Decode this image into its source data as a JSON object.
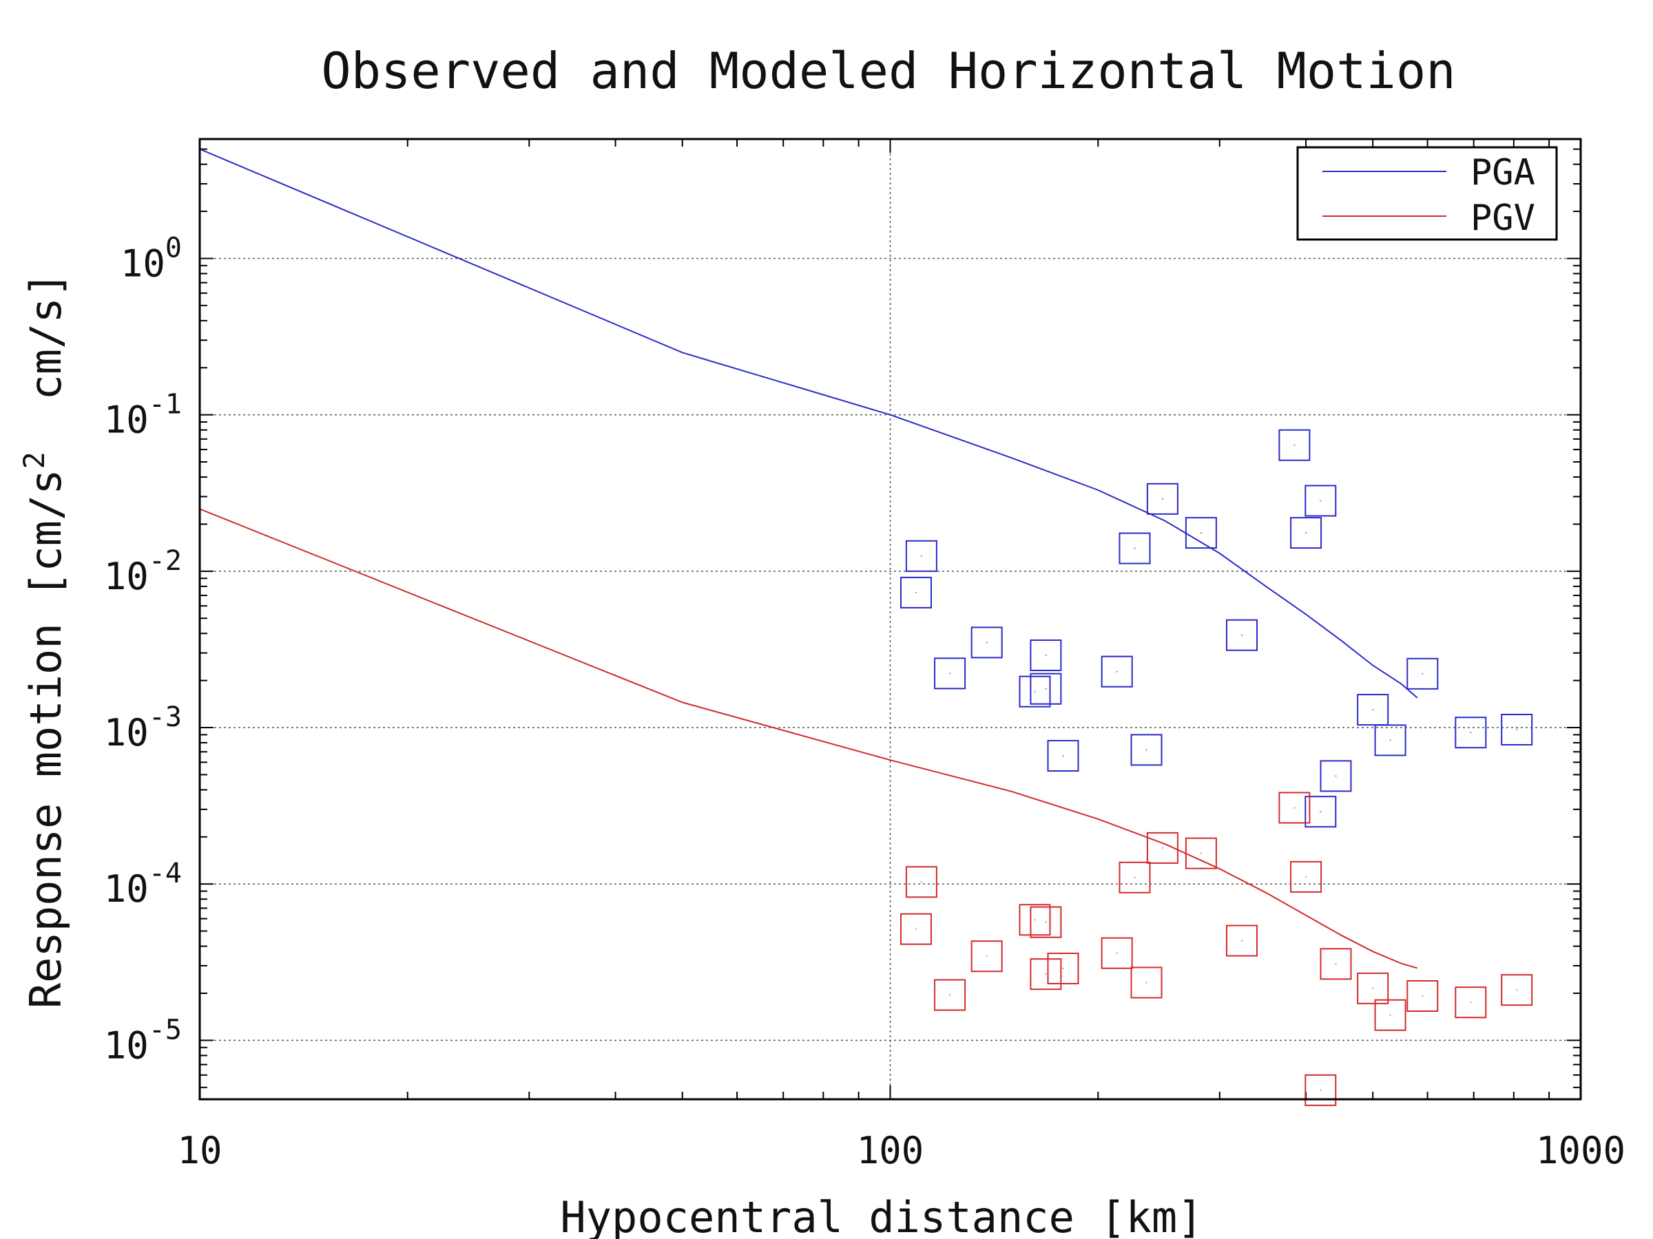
{
  "chart_data": {
    "type": "scatter",
    "title": "Observed and Modeled Horizontal Motion",
    "xlabel": "Hypocentral distance [km]",
    "ylabel": "Response motion [cm/s2 cm/s]",
    "ylabel_parts": {
      "main": "Response motion [cm/s",
      "superscript": "2",
      "tail": "  cm/s]"
    },
    "x_scale": "log",
    "y_scale": "log",
    "xlim": [
      10,
      1000
    ],
    "ylim": [
      4.2e-06,
      5.8
    ],
    "x_ticks": [
      {
        "value": 10,
        "label": "10"
      },
      {
        "value": 100,
        "label": "100"
      },
      {
        "value": 1000,
        "label": "1000"
      }
    ],
    "y_ticks": [
      {
        "value": 1e-05,
        "base": "10",
        "exponent": "-5"
      },
      {
        "value": 0.0001,
        "base": "10",
        "exponent": "-4"
      },
      {
        "value": 0.001,
        "base": "10",
        "exponent": "-3"
      },
      {
        "value": 0.01,
        "base": "10",
        "exponent": "-2"
      },
      {
        "value": 0.1,
        "base": "10",
        "exponent": "-1"
      },
      {
        "value": 1,
        "base": "10",
        "exponent": "0"
      }
    ],
    "grid": true,
    "legend_position": "top-right",
    "colors": {
      "PGA": "#2a2acc",
      "PGV": "#d42a2a",
      "grid": "#555555",
      "frame": "#000000"
    },
    "model_curves": [
      {
        "name": "PGA",
        "color": "#2a2acc",
        "x": [
          10,
          50,
          100,
          150,
          200,
          250,
          300,
          350,
          400,
          450,
          500,
          550,
          580
        ],
        "y": [
          5.0,
          0.25,
          0.1,
          0.053,
          0.033,
          0.021,
          0.013,
          0.008,
          0.0053,
          0.0036,
          0.0025,
          0.0019,
          0.00155
        ]
      },
      {
        "name": "PGV",
        "color": "#d42a2a",
        "x": [
          10,
          50,
          100,
          150,
          200,
          250,
          300,
          350,
          400,
          450,
          500,
          550,
          580
        ],
        "y": [
          0.025,
          0.00145,
          0.00062,
          0.00039,
          0.00026,
          0.00018,
          0.000125,
          8.8e-05,
          6.3e-05,
          4.7e-05,
          3.7e-05,
          3.1e-05,
          2.9e-05
        ]
      }
    ],
    "observed": [
      {
        "name": "PGA",
        "color": "#2a2acc",
        "x": [
          109,
          111,
          122,
          138,
          162,
          168,
          168,
          178,
          213,
          226,
          235,
          248,
          282,
          323,
          385,
          400,
          420,
          420,
          442,
          500,
          530,
          590,
          693,
          808
        ],
        "y": [
          0.0073,
          0.0125,
          0.00222,
          0.0035,
          0.0017,
          0.0029,
          0.00177,
          0.00066,
          0.00228,
          0.014,
          0.00072,
          0.029,
          0.0176,
          0.0039,
          0.064,
          0.0176,
          0.00029,
          0.0282,
          0.00049,
          0.0013,
          0.00083,
          0.00221,
          0.00093,
          0.00097
        ]
      },
      {
        "name": "PGV",
        "color": "#d42a2a",
        "x": [
          109,
          111,
          122,
          138,
          162,
          168,
          168,
          178,
          213,
          226,
          235,
          248,
          282,
          323,
          385,
          400,
          420,
          442,
          500,
          530,
          590,
          693,
          808
        ],
        "y": [
          5.15e-05,
          0.000103,
          1.95e-05,
          3.45e-05,
          5.9e-05,
          2.65e-05,
          5.7e-05,
          2.88e-05,
          3.61e-05,
          0.00011,
          2.34e-05,
          0.00017,
          0.000157,
          4.34e-05,
          0.000307,
          0.000111,
          4.8e-06,
          3.08e-05,
          2.15e-05,
          1.45e-05,
          1.92e-05,
          1.75e-05,
          2.1e-05
        ]
      }
    ]
  }
}
